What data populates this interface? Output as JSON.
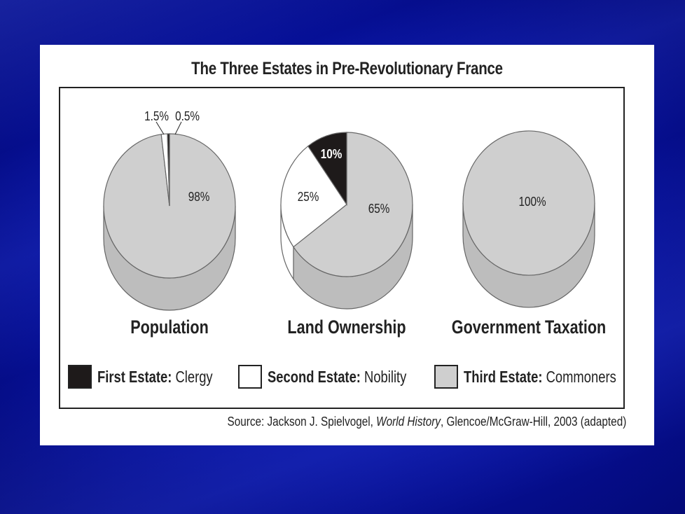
{
  "chart_data": {
    "type": "pie",
    "title": "The Three Estates in Pre-Revolutionary France",
    "categories": [
      "First Estate: Clergy",
      "Second Estate: Nobility",
      "Third Estate: Commoners"
    ],
    "colors": {
      "first": "#1e1a1a",
      "second": "#ffffff",
      "third": "#cfcfcf",
      "third_side": "#bdbdbd"
    },
    "pies": [
      {
        "name": "Population",
        "values": {
          "first": 0.5,
          "second": 1.5,
          "third": 98
        },
        "labels": {
          "first": "0.5%",
          "second": "1.5%",
          "third": "98%"
        }
      },
      {
        "name": "Land Ownership",
        "values": {
          "first": 10,
          "second": 25,
          "third": 65
        },
        "labels": {
          "first": "10%",
          "second": "25%",
          "third": "65%"
        }
      },
      {
        "name": "Government Taxation",
        "values": {
          "first": 0,
          "second": 0,
          "third": 100
        },
        "labels": {
          "third": "100%"
        }
      }
    ],
    "legend": {
      "position": "bottom",
      "items": [
        {
          "bold": "First Estate:",
          "text": " Clergy"
        },
        {
          "bold": "Second Estate:",
          "text": " Nobility"
        },
        {
          "bold": "Third Estate:",
          "text": " Commoners"
        }
      ]
    },
    "source": {
      "prefix": "Source: Jackson J. Spielvogel, ",
      "italic": "World History",
      "suffix": ", Glencoe/McGraw-Hill, 2003 (adapted)"
    }
  }
}
